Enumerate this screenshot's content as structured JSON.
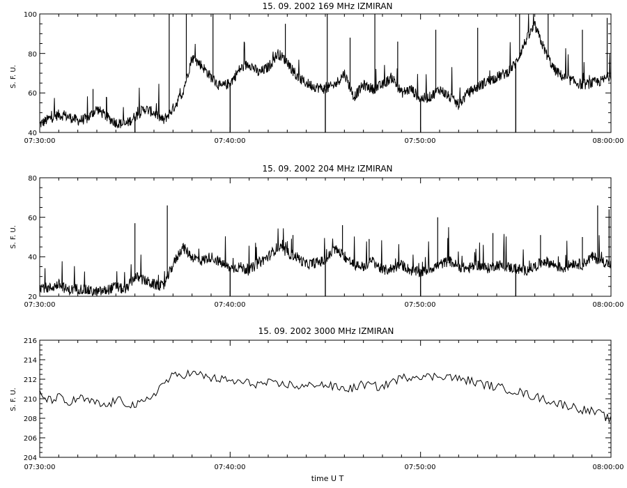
{
  "xlabel": "time  U T",
  "chart_data": [
    {
      "type": "line",
      "title": "15.  09.  2002    169  MHz     IZMIRAN",
      "ylabel": "S. F. U.",
      "ylim": [
        40,
        100
      ],
      "yticks": [
        "40",
        "60",
        "80",
        "100"
      ],
      "xticks": [
        "07:30:00",
        "07:40:00",
        "07:50:00",
        "08:00:00"
      ],
      "xlim_minutes": [
        0,
        30
      ],
      "series": [
        {
          "color": "#000000",
          "x": [
            0,
            0.5,
            1,
            1.5,
            2,
            2.5,
            3,
            3.5,
            4,
            4.5,
            5,
            5.5,
            6,
            6.5,
            7,
            7.5,
            8,
            8.5,
            9,
            9.5,
            10,
            10.5,
            11,
            11.5,
            12,
            12.5,
            13,
            13.5,
            14,
            14.5,
            15,
            15.5,
            16,
            16.5,
            17,
            17.5,
            18,
            18.5,
            19,
            19.5,
            20,
            20.5,
            21,
            21.5,
            22,
            22.5,
            23,
            23.5,
            24,
            24.5,
            25,
            25.5,
            26,
            26.5,
            27,
            27.5,
            28,
            28.5,
            29,
            29.5,
            30
          ],
          "y": [
            44,
            47,
            49,
            48,
            46,
            47,
            52,
            48,
            45,
            44,
            48,
            52,
            50,
            46,
            52,
            60,
            78,
            74,
            68,
            63,
            65,
            72,
            75,
            70,
            73,
            80,
            76,
            68,
            65,
            63,
            62,
            64,
            70,
            58,
            64,
            62,
            64,
            68,
            60,
            62,
            57,
            58,
            62,
            58,
            54,
            60,
            63,
            66,
            68,
            70,
            75,
            86,
            94,
            82,
            72,
            68,
            66,
            64,
            65,
            66,
            69
          ],
          "spikes": [
            {
              "x": 2.8,
              "y": 62
            },
            {
              "x": 3.5,
              "y": 58
            },
            {
              "x": 6.8,
              "y": 100
            },
            {
              "x": 7.7,
              "y": 100
            },
            {
              "x": 9.1,
              "y": 100
            },
            {
              "x": 12.9,
              "y": 95
            },
            {
              "x": 15.1,
              "y": 100
            },
            {
              "x": 16.3,
              "y": 88
            },
            {
              "x": 17.6,
              "y": 100
            },
            {
              "x": 18.8,
              "y": 86
            },
            {
              "x": 20.8,
              "y": 92
            },
            {
              "x": 23.0,
              "y": 93
            },
            {
              "x": 25.2,
              "y": 100
            },
            {
              "x": 26.7,
              "y": 100
            },
            {
              "x": 28.5,
              "y": 92
            },
            {
              "x": 29.8,
              "y": 98
            }
          ],
          "dips": [
            {
              "x": 5.0,
              "y": 40
            },
            {
              "x": 10.0,
              "y": 40
            },
            {
              "x": 15.0,
              "y": 40
            },
            {
              "x": 20.0,
              "y": 40
            },
            {
              "x": 25.0,
              "y": 40
            }
          ]
        }
      ]
    },
    {
      "type": "line",
      "title": "15.  09.  2002    204  MHz     IZMIRAN",
      "ylabel": "S. F. U.",
      "ylim": [
        20,
        80
      ],
      "yticks": [
        "20",
        "40",
        "60",
        "80"
      ],
      "xticks": [
        "07:30:00",
        "07:40:00",
        "07:50:00",
        "08:00:00"
      ],
      "xlim_minutes": [
        0,
        30
      ],
      "series": [
        {
          "color": "#000000",
          "x": [
            0,
            0.5,
            1,
            1.5,
            2,
            2.5,
            3,
            3.5,
            4,
            4.5,
            5,
            5.5,
            6,
            6.5,
            7,
            7.5,
            8,
            8.5,
            9,
            9.5,
            10,
            10.5,
            11,
            11.5,
            12,
            12.5,
            13,
            13.5,
            14,
            14.5,
            15,
            15.5,
            16,
            16.5,
            17,
            17.5,
            18,
            18.5,
            19,
            19.5,
            20,
            20.5,
            21,
            21.5,
            22,
            22.5,
            23,
            23.5,
            24,
            24.5,
            25,
            25.5,
            26,
            26.5,
            27,
            27.5,
            28,
            28.5,
            29,
            29.5,
            30
          ],
          "y": [
            25,
            24,
            26,
            23,
            24,
            23,
            22,
            23,
            25,
            23,
            30,
            28,
            26,
            25,
            36,
            45,
            40,
            38,
            40,
            37,
            34,
            35,
            33,
            37,
            40,
            45,
            42,
            40,
            36,
            37,
            38,
            44,
            40,
            36,
            35,
            38,
            33,
            34,
            36,
            33,
            32,
            34,
            36,
            38,
            35,
            34,
            36,
            34,
            36,
            35,
            34,
            33,
            35,
            38,
            36,
            34,
            37,
            36,
            40,
            38,
            36
          ],
          "spikes": [
            {
              "x": 5.0,
              "y": 57
            },
            {
              "x": 6.7,
              "y": 66
            },
            {
              "x": 13.3,
              "y": 51
            },
            {
              "x": 15.9,
              "y": 56
            },
            {
              "x": 17.3,
              "y": 49
            },
            {
              "x": 20.9,
              "y": 60
            },
            {
              "x": 23.8,
              "y": 52
            },
            {
              "x": 26.3,
              "y": 51
            },
            {
              "x": 28.5,
              "y": 50
            },
            {
              "x": 29.3,
              "y": 66
            },
            {
              "x": 29.9,
              "y": 64
            }
          ],
          "dips": [
            {
              "x": 10.0,
              "y": 20
            },
            {
              "x": 15.0,
              "y": 20
            },
            {
              "x": 20.0,
              "y": 20
            },
            {
              "x": 25.0,
              "y": 20
            }
          ]
        }
      ]
    },
    {
      "type": "line",
      "title": "15.  09.  2002    3000  MHz     IZMIRAN",
      "ylabel": "S. F. U.",
      "ylim": [
        204,
        216
      ],
      "yticks": [
        "204",
        "206",
        "208",
        "210",
        "212",
        "214",
        "216"
      ],
      "xticks": [
        "07:30:00",
        "07:40:00",
        "07:50:00",
        "08:00:00"
      ],
      "xlim_minutes": [
        0,
        30
      ],
      "series": [
        {
          "color": "#000000",
          "x": [
            0,
            0.5,
            1,
            1.5,
            2,
            2.5,
            3,
            3.5,
            4,
            4.5,
            5,
            5.5,
            6,
            6.5,
            7,
            7.5,
            8,
            8.5,
            9,
            9.5,
            10,
            10.5,
            11,
            11.5,
            12,
            12.5,
            13,
            13.5,
            14,
            14.5,
            15,
            15.5,
            16,
            16.5,
            17,
            17.5,
            18,
            18.5,
            19,
            19.5,
            20,
            20.5,
            21,
            21.5,
            22,
            22.5,
            23,
            23.5,
            24,
            24.5,
            25,
            25.5,
            26,
            26.5,
            27,
            27.5,
            28,
            28.5,
            29,
            29.5,
            30
          ],
          "y": [
            210.5,
            209.8,
            210.2,
            209.4,
            210.1,
            209.8,
            209.5,
            209.2,
            209.9,
            209.6,
            209.3,
            209.6,
            210.5,
            211.6,
            212.3,
            212.5,
            212.6,
            212.4,
            212.1,
            212.0,
            211.8,
            211.7,
            211.6,
            211.5,
            211.6,
            211.4,
            211.5,
            211.3,
            211.2,
            211.6,
            211.4,
            211.2,
            211.0,
            211.1,
            211.5,
            211.3,
            211.2,
            211.8,
            212.1,
            212.3,
            212.4,
            212.2,
            212.4,
            212.3,
            212.0,
            211.9,
            211.6,
            211.4,
            211.2,
            211.0,
            210.8,
            210.5,
            210.2,
            210.0,
            209.6,
            209.4,
            209.2,
            208.9,
            208.7,
            208.4,
            207.8
          ],
          "noise": 0.45
        }
      ]
    }
  ]
}
